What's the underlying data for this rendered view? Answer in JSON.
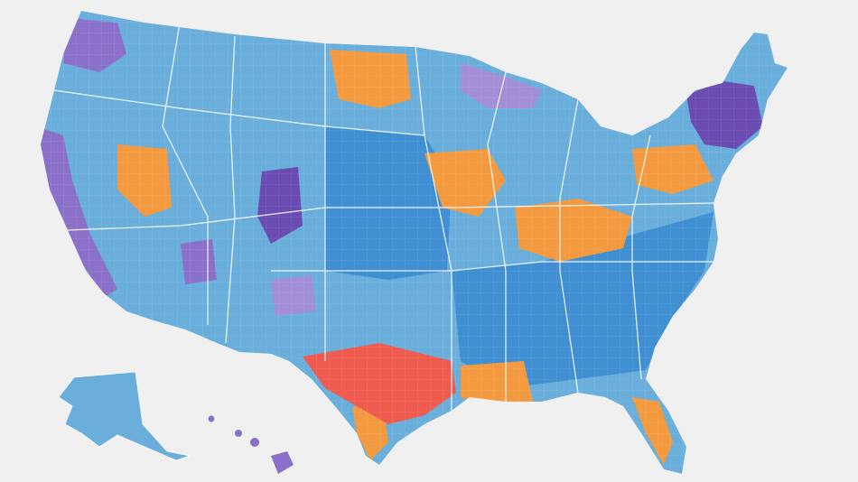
{
  "map": {
    "type": "choropleth",
    "subject": "US counties",
    "background_color": "#f0f0f0",
    "border_color": "#ffffff",
    "palette": {
      "light_blue": "#6aaedb",
      "blue": "#3f8fd2",
      "dark_blue": "#2f7fc8",
      "purple": "#8a70c8",
      "light_purple": "#a38fd6",
      "dark_purple": "#6a4cb3",
      "orange": "#f39a40",
      "red": "#ef5b4f"
    },
    "regions": [
      {
        "name": "contiguous-us",
        "color": "light_blue"
      },
      {
        "name": "southeast-blue",
        "color": "blue"
      },
      {
        "name": "central-plains-blue",
        "color": "blue"
      },
      {
        "name": "pacific-coast-purple",
        "color": "purple"
      },
      {
        "name": "new-england-purple",
        "color": "dark_purple"
      },
      {
        "name": "pacific-northwest-purple",
        "color": "purple"
      },
      {
        "name": "colorado-purple",
        "color": "dark_purple"
      },
      {
        "name": "nevada-purple",
        "color": "purple"
      },
      {
        "name": "new-mexico-purple",
        "color": "light_purple"
      },
      {
        "name": "great-lakes-purple",
        "color": "light_purple"
      },
      {
        "name": "dakotas-orange",
        "color": "orange"
      },
      {
        "name": "appalachia-orange",
        "color": "orange"
      },
      {
        "name": "pennsylvania-orange",
        "color": "orange"
      },
      {
        "name": "ohio-valley-orange",
        "color": "orange"
      },
      {
        "name": "louisiana-orange",
        "color": "orange"
      },
      {
        "name": "south-texas-orange",
        "color": "orange"
      },
      {
        "name": "florida-orange",
        "color": "orange"
      },
      {
        "name": "nevada-orange",
        "color": "orange"
      },
      {
        "name": "texas-red",
        "color": "red"
      },
      {
        "name": "alaska",
        "color": "light_blue"
      },
      {
        "name": "hawaii",
        "color": "purple"
      }
    ]
  }
}
